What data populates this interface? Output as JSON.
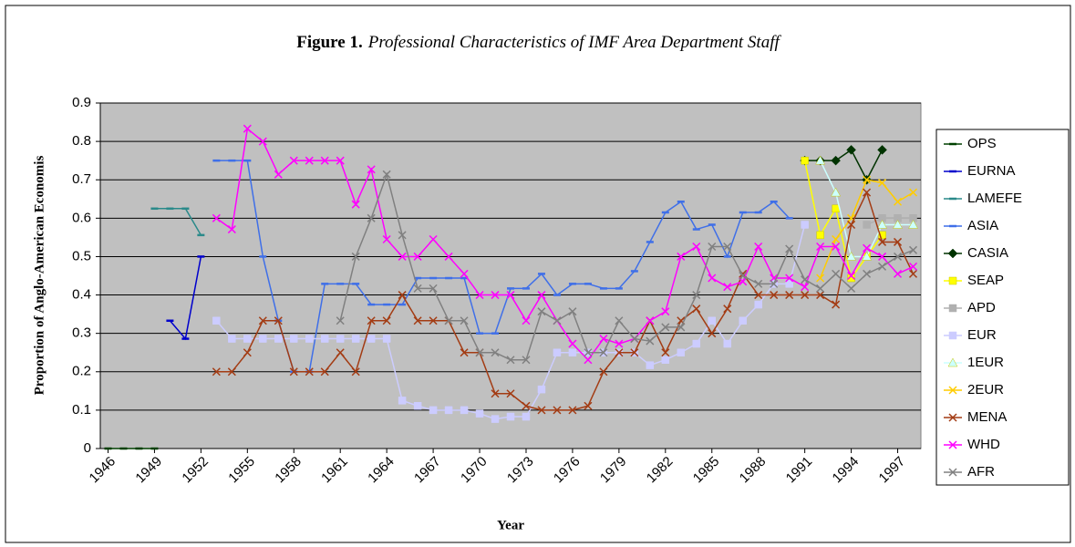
{
  "chart_data": {
    "type": "line",
    "title_label": "Figure 1.",
    "title": "Professional Characteristics of IMF Area Department Staff",
    "x_label": "Year",
    "y_label": "Proportion of Anglo-American Economis",
    "x": [
      1946,
      1947,
      1948,
      1949,
      1950,
      1951,
      1952,
      1953,
      1954,
      1955,
      1956,
      1957,
      1958,
      1959,
      1960,
      1961,
      1962,
      1963,
      1964,
      1965,
      1966,
      1967,
      1968,
      1969,
      1970,
      1971,
      1972,
      1973,
      1974,
      1975,
      1976,
      1977,
      1978,
      1979,
      1980,
      1981,
      1982,
      1983,
      1984,
      1985,
      1986,
      1987,
      1988,
      1989,
      1990,
      1991,
      1992,
      1993,
      1994,
      1995,
      1996,
      1997,
      1998
    ],
    "xlim": [
      1945.5,
      1998.5
    ],
    "xticks": [
      1946,
      1949,
      1952,
      1955,
      1958,
      1961,
      1964,
      1967,
      1970,
      1973,
      1976,
      1979,
      1982,
      1985,
      1988,
      1991,
      1994,
      1997
    ],
    "ylim": [
      0,
      0.9
    ],
    "yticks": [
      0,
      0.1,
      0.2,
      0.3,
      0.4,
      0.5,
      0.6,
      0.7,
      0.8,
      0.9
    ],
    "grid": true,
    "legend": "right",
    "series": [
      {
        "name": "OPS",
        "color": "#004000",
        "marker": "dash",
        "values": [
          0,
          0,
          0,
          0,
          null,
          null,
          null,
          null,
          null,
          null,
          null,
          null,
          null,
          null,
          null,
          null,
          null,
          null,
          null,
          null,
          null,
          null,
          null,
          null,
          null,
          null,
          null,
          null,
          null,
          null,
          null,
          null,
          null,
          null,
          null,
          null,
          null,
          null,
          null,
          null,
          null,
          null,
          null,
          null,
          null,
          null,
          null,
          null,
          null,
          null,
          null,
          null,
          null
        ]
      },
      {
        "name": "EURNA",
        "color": "#0000cc",
        "marker": "dash",
        "values": [
          null,
          null,
          null,
          null,
          0.333,
          0.286,
          0.5,
          null,
          null,
          null,
          null,
          null,
          null,
          null,
          null,
          null,
          null,
          null,
          null,
          null,
          null,
          null,
          null,
          null,
          null,
          null,
          null,
          null,
          null,
          null,
          null,
          null,
          null,
          null,
          null,
          null,
          null,
          null,
          null,
          null,
          null,
          null,
          null,
          null,
          null,
          null,
          null,
          null,
          null,
          null,
          null,
          null,
          null
        ]
      },
      {
        "name": "LAMEFE",
        "color": "#2a8a8a",
        "marker": "dash",
        "values": [
          null,
          null,
          null,
          0.625,
          0.625,
          0.625,
          0.556,
          null,
          null,
          null,
          null,
          null,
          null,
          null,
          null,
          null,
          null,
          null,
          null,
          null,
          null,
          null,
          null,
          null,
          null,
          null,
          null,
          null,
          null,
          null,
          null,
          null,
          null,
          null,
          null,
          null,
          null,
          null,
          null,
          null,
          null,
          null,
          null,
          null,
          null,
          null,
          null,
          null,
          null,
          null,
          null,
          null,
          null
        ]
      },
      {
        "name": "ASIA",
        "color": "#3f6fe8",
        "marker": "dash",
        "values": [
          null,
          null,
          null,
          null,
          null,
          null,
          null,
          0.75,
          0.75,
          0.75,
          0.5,
          0.333,
          0.2,
          0.2,
          0.429,
          0.429,
          0.429,
          0.375,
          0.375,
          0.375,
          0.444,
          0.444,
          0.444,
          0.444,
          0.3,
          0.3,
          0.417,
          0.417,
          0.455,
          0.4,
          0.429,
          0.429,
          0.417,
          0.417,
          0.462,
          0.538,
          0.615,
          0.643,
          0.571,
          0.583,
          0.5,
          0.615,
          0.615,
          0.643,
          0.6,
          null,
          null,
          null,
          null,
          null,
          null,
          null,
          null
        ]
      },
      {
        "name": "CASIA",
        "color": "#003300",
        "marker": "diamond",
        "values": [
          null,
          null,
          null,
          null,
          null,
          null,
          null,
          null,
          null,
          null,
          null,
          null,
          null,
          null,
          null,
          null,
          null,
          null,
          null,
          null,
          null,
          null,
          null,
          null,
          null,
          null,
          null,
          null,
          null,
          null,
          null,
          null,
          null,
          null,
          null,
          null,
          null,
          null,
          null,
          null,
          null,
          null,
          null,
          null,
          null,
          0.75,
          0.75,
          0.75,
          0.778,
          0.7,
          0.778,
          null,
          null
        ]
      },
      {
        "name": "SEAP",
        "color": "#ffff00",
        "marker": "square",
        "values": [
          null,
          null,
          null,
          null,
          null,
          null,
          null,
          null,
          null,
          null,
          null,
          null,
          null,
          null,
          null,
          null,
          null,
          null,
          null,
          null,
          null,
          null,
          null,
          null,
          null,
          null,
          null,
          null,
          null,
          null,
          null,
          null,
          null,
          null,
          null,
          null,
          null,
          null,
          null,
          null,
          null,
          null,
          null,
          null,
          null,
          0.75,
          0.556,
          0.625,
          0.444,
          0.5,
          0.556,
          null,
          null
        ]
      },
      {
        "name": "APD",
        "color": "#b0b0b0",
        "marker": "square",
        "values": [
          null,
          null,
          null,
          null,
          null,
          null,
          null,
          null,
          null,
          null,
          null,
          null,
          null,
          null,
          null,
          null,
          null,
          null,
          null,
          null,
          null,
          null,
          null,
          null,
          null,
          null,
          null,
          null,
          null,
          null,
          null,
          null,
          null,
          null,
          null,
          null,
          null,
          null,
          null,
          null,
          null,
          null,
          null,
          null,
          null,
          null,
          null,
          null,
          null,
          0.583,
          0.6,
          0.6,
          0.6
        ]
      },
      {
        "name": "EUR",
        "color": "#ccccff",
        "marker": "square",
        "values": [
          null,
          null,
          null,
          null,
          null,
          null,
          null,
          0.333,
          0.286,
          0.286,
          0.286,
          0.286,
          0.286,
          0.286,
          0.286,
          0.286,
          0.286,
          0.286,
          0.286,
          0.125,
          0.111,
          0.1,
          0.1,
          0.1,
          0.091,
          0.077,
          0.083,
          0.083,
          0.154,
          0.25,
          0.25,
          0.25,
          0.25,
          0.25,
          0.25,
          0.217,
          0.231,
          0.25,
          0.273,
          0.333,
          0.273,
          0.333,
          0.375,
          0.429,
          0.429,
          0.583,
          null,
          null,
          null,
          null,
          null,
          null,
          null
        ]
      },
      {
        "name": "1EUR",
        "color": "#ccffff",
        "marker": "triangle",
        "values": [
          null,
          null,
          null,
          null,
          null,
          null,
          null,
          null,
          null,
          null,
          null,
          null,
          null,
          null,
          null,
          null,
          null,
          null,
          null,
          null,
          null,
          null,
          null,
          null,
          null,
          null,
          null,
          null,
          null,
          null,
          null,
          null,
          null,
          null,
          null,
          null,
          null,
          null,
          null,
          null,
          null,
          null,
          null,
          null,
          null,
          null,
          0.75,
          0.667,
          0.5,
          0.5,
          0.583,
          0.583,
          0.583
        ]
      },
      {
        "name": "2EUR",
        "color": "#ffcc00",
        "marker": "x",
        "values": [
          null,
          null,
          null,
          null,
          null,
          null,
          null,
          null,
          null,
          null,
          null,
          null,
          null,
          null,
          null,
          null,
          null,
          null,
          null,
          null,
          null,
          null,
          null,
          null,
          null,
          null,
          null,
          null,
          null,
          null,
          null,
          null,
          null,
          null,
          null,
          null,
          null,
          null,
          null,
          null,
          null,
          null,
          null,
          null,
          null,
          null,
          0.444,
          0.545,
          0.6,
          0.7,
          0.692,
          0.643,
          0.667
        ]
      },
      {
        "name": "MENA",
        "color": "#a33c14",
        "marker": "x",
        "values": [
          null,
          null,
          null,
          null,
          null,
          null,
          null,
          0.2,
          0.2,
          0.25,
          0.333,
          0.333,
          0.2,
          0.2,
          0.2,
          0.25,
          0.2,
          0.333,
          0.333,
          0.4,
          0.333,
          0.333,
          0.333,
          0.25,
          0.25,
          0.143,
          0.143,
          0.111,
          0.1,
          0.1,
          0.1,
          0.111,
          0.2,
          0.25,
          0.25,
          0.333,
          0.25,
          0.333,
          0.364,
          0.3,
          0.364,
          0.455,
          0.4,
          0.4,
          0.4,
          0.4,
          0.4,
          0.375,
          0.583,
          0.667,
          0.538,
          0.538,
          0.455
        ]
      },
      {
        "name": "WHD",
        "color": "#ff00ff",
        "marker": "x",
        "values": [
          null,
          null,
          null,
          null,
          null,
          null,
          null,
          0.6,
          0.571,
          0.833,
          0.8,
          0.714,
          0.75,
          0.75,
          0.75,
          0.75,
          0.636,
          0.727,
          0.545,
          0.5,
          0.5,
          0.545,
          0.5,
          0.455,
          0.4,
          0.4,
          0.4,
          0.333,
          0.4,
          0.333,
          0.273,
          0.231,
          0.286,
          0.273,
          0.286,
          0.333,
          0.357,
          0.5,
          0.526,
          0.444,
          0.421,
          0.435,
          0.526,
          0.444,
          0.444,
          0.421,
          0.526,
          0.526,
          0.45,
          0.522,
          0.5,
          0.455,
          0.474
        ]
      },
      {
        "name": "AFR",
        "color": "#808080",
        "marker": "x",
        "values": [
          null,
          null,
          null,
          null,
          null,
          null,
          null,
          null,
          null,
          null,
          null,
          null,
          null,
          null,
          null,
          0.333,
          0.5,
          0.6,
          0.714,
          0.556,
          0.417,
          0.417,
          0.333,
          0.333,
          0.25,
          0.25,
          0.231,
          0.231,
          0.357,
          0.333,
          0.357,
          0.25,
          0.25,
          0.333,
          0.286,
          0.28,
          0.316,
          0.316,
          0.4,
          0.526,
          0.526,
          0.45,
          0.429,
          0.429,
          0.52,
          0.44,
          0.417,
          0.455,
          0.417,
          0.455,
          0.474,
          0.5,
          0.517
        ]
      }
    ]
  }
}
